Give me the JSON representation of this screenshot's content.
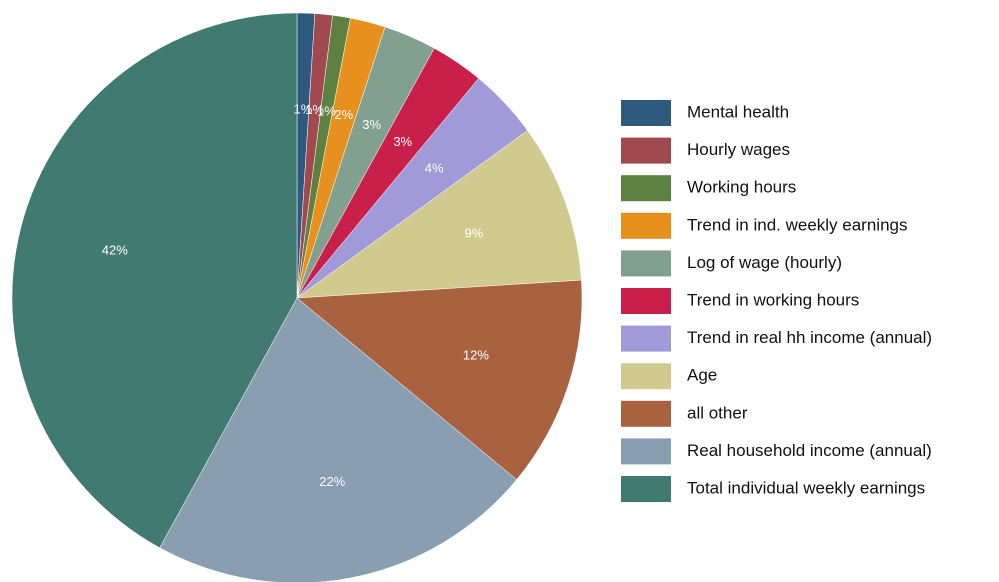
{
  "chart_data": {
    "type": "pie",
    "categories": [
      "Mental health",
      "Hourly wages",
      "Working hours",
      "Trend in ind. weekly earnings",
      "Log of wage (hourly)",
      "Trend in working hours",
      "Trend in real hh income (annual)",
      "Age",
      "all other",
      "Real household income (annual)",
      "Total individual weekly earnings"
    ],
    "values": [
      1,
      1,
      1,
      2,
      3,
      3,
      4,
      9,
      12,
      22,
      42
    ],
    "value_labels": [
      "1%",
      "1%",
      "1%",
      "2%",
      "3%",
      "3%",
      "4%",
      "9%",
      "12%",
      "22%",
      "42%"
    ],
    "colors": [
      "#2e5a80",
      "#a04a50",
      "#5e8040",
      "#e8901e",
      "#82a090",
      "#c8204a",
      "#a09ad8",
      "#d0ca8e",
      "#a86240",
      "#8a9eb2",
      "#407a70"
    ],
    "legend": "right"
  }
}
